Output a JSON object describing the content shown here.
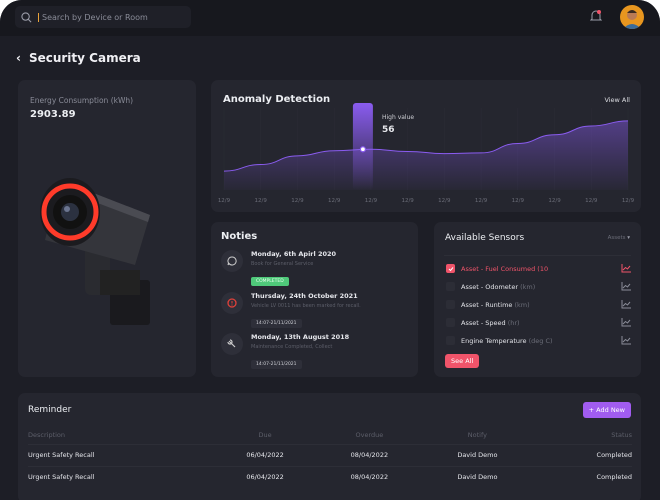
{
  "search": {
    "placeholder": "Search by Device or Room",
    "icon": "search-icon"
  },
  "header": {
    "notification_icon": "bell-icon",
    "avatar": "user-avatar"
  },
  "page": {
    "title": "Security Camera",
    "back_icon": "chevron-left-icon"
  },
  "energy": {
    "label": "Energy Consumption (kWh)",
    "value": "2903.89"
  },
  "anomaly": {
    "title": "Anomaly Detection",
    "view_all": "View All",
    "tooltip_label": "High value",
    "tooltip_value": "56"
  },
  "chart_data": {
    "type": "area",
    "x": [
      "12/9",
      "12/9",
      "12/9",
      "12/9",
      "12/9",
      "12/9",
      "12/9",
      "12/9",
      "12/9",
      "12/9",
      "12/9",
      "12/9"
    ],
    "values": [
      26,
      35,
      47,
      54,
      56,
      53,
      50,
      51,
      64,
      76,
      88,
      95
    ],
    "highlight_index": 4,
    "highlight_value": 56,
    "ylim": [
      0,
      110
    ],
    "grid": "vertical",
    "color": "#8a5cf0"
  },
  "noties": {
    "title": "Noties",
    "items": [
      {
        "date": "Monday, 6th Apirl 2020",
        "desc": "Book for General Service",
        "badge": "COMPLETED",
        "icon": "chat-icon"
      },
      {
        "date": "Thursday, 24th October 2021",
        "desc": "Vehicle LV 0011 has been marked for recall.",
        "badge": "14:07-21/11/2021",
        "icon": "alert-icon"
      },
      {
        "date": "Monday, 13th August 2018",
        "desc": "Maintenance Completed, Collect",
        "badge": "14:07-21/11/2021",
        "icon": "wrench-icon"
      }
    ]
  },
  "sensors": {
    "title": "Available Sensors",
    "filter": "Assets",
    "see_all": "See All",
    "items": [
      {
        "name": "Asset - Fuel Consumed (10",
        "unit": "",
        "checked": true
      },
      {
        "name": "Asset - Odometer",
        "unit": "(km)",
        "checked": false
      },
      {
        "name": "Asset - Runtime",
        "unit": "(km)",
        "checked": false
      },
      {
        "name": "Asset - Speed",
        "unit": "(hr)",
        "checked": false
      },
      {
        "name": "Engine Temperature",
        "unit": "(deg C)",
        "checked": false
      }
    ]
  },
  "reminder": {
    "title": "Reminder",
    "add_new": "+ Add New",
    "columns": [
      "Description",
      "Due",
      "Overdue",
      "Notify",
      "Status"
    ],
    "rows": [
      [
        "Urgent Safety Recall",
        "06/04/2022",
        "08/04/2022",
        "David Demo",
        "Completed"
      ],
      [
        "Urgent Safety Recall",
        "06/04/2022",
        "08/04/2022",
        "David Demo",
        "Completed"
      ]
    ]
  },
  "colors": {
    "accent": "#8a5cf0",
    "danger": "#f0546a",
    "success": "#4fc97a",
    "button": "#a15cf0"
  }
}
